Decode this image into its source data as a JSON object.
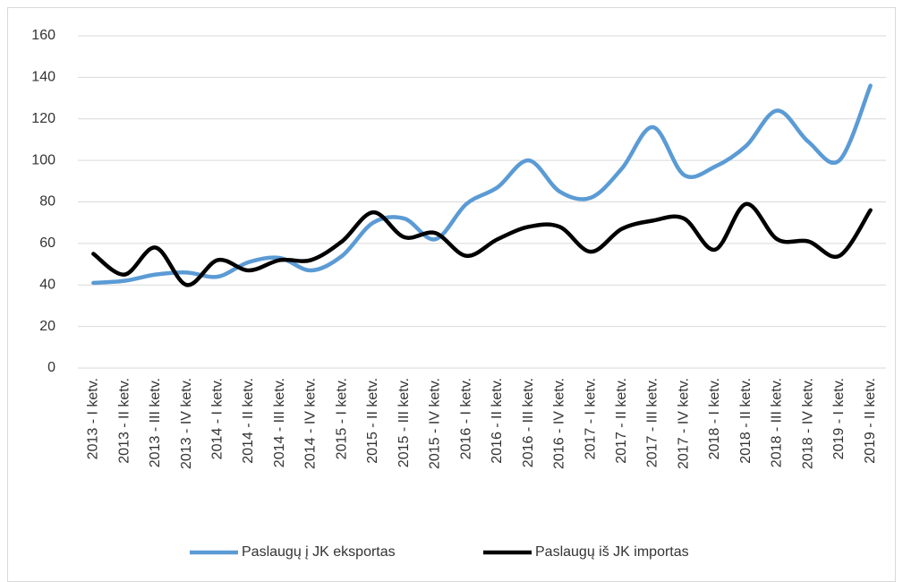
{
  "chart_data": {
    "type": "line",
    "categories": [
      "2013 - I ketv.",
      "2013 - II ketv.",
      "2013 - III ketv.",
      "2013 - IV ketv.",
      "2014 - I ketv.",
      "2014 - II ketv.",
      "2014 - III ketv.",
      "2014 - IV ketv.",
      "2015 - I ketv.",
      "2015 - II ketv.",
      "2015 - III ketv.",
      "2015 - IV ketv.",
      "2016 - I ketv.",
      "2016 - II ketv.",
      "2016 - III ketv.",
      "2016 - IV ketv.",
      "2017 - I ketv.",
      "2017 - II ketv.",
      "2017 - III ketv.",
      "2017 - IV ketv.",
      "2018 - I ketv.",
      "2018 - II ketv.",
      "2018 - III ketv.",
      "2018 - IV ketv.",
      "2019 - I ketv.",
      "2019 - II ketv."
    ],
    "series": [
      {
        "name": "Paslaugų į JK eksportas",
        "color": "#5b9bd5",
        "values": [
          41,
          42,
          45,
          46,
          44,
          51,
          53,
          47,
          54,
          70,
          72,
          62,
          79,
          87,
          100,
          85,
          82,
          96,
          116,
          93,
          97,
          107,
          124,
          109,
          100,
          136
        ]
      },
      {
        "name": "Paslaugų iš JK importas",
        "color": "#000000",
        "values": [
          55,
          45,
          58,
          40,
          52,
          47,
          52,
          52,
          61,
          75,
          63,
          65,
          54,
          62,
          68,
          68,
          56,
          67,
          71,
          72,
          57,
          79,
          62,
          61,
          54,
          76
        ]
      }
    ],
    "ylim": [
      0,
      160
    ],
    "yticks": [
      0,
      20,
      40,
      60,
      80,
      100,
      120,
      140,
      160
    ],
    "grid": true,
    "legend": "bottom"
  }
}
